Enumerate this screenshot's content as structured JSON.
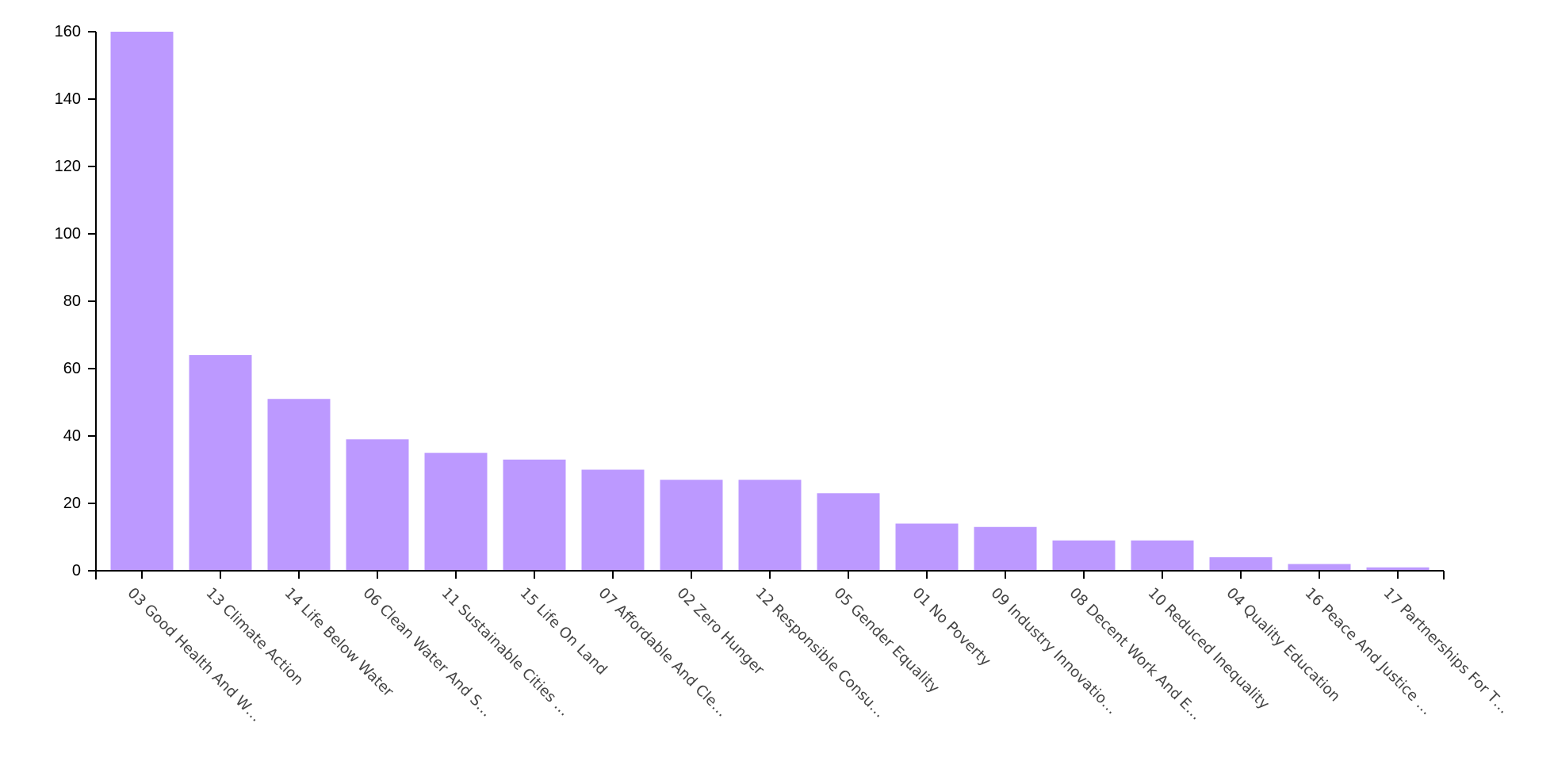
{
  "chart_data": {
    "type": "bar",
    "categories": [
      "03 Good Health And W…",
      "13 Climate Action",
      "14 Life Below Water",
      "06 Clean Water And S…",
      "11 Sustainable Cities …",
      "15 Life On Land",
      "07 Affordable And Cle…",
      "02 Zero Hunger",
      "12 Responsible Consu…",
      "05 Gender Equality",
      "01 No Poverty",
      "09 Industry Innovatio…",
      "08 Decent Work And E…",
      "10 Reduced Inequality",
      "04 Quality Education",
      "16 Peace And Justice …",
      "17 Partnerships For T…"
    ],
    "values": [
      160,
      64,
      51,
      39,
      35,
      33,
      30,
      27,
      27,
      23,
      14,
      13,
      9,
      9,
      4,
      2,
      1
    ],
    "title": "",
    "xlabel": "",
    "ylabel": "",
    "ylim": [
      0,
      160
    ],
    "yticks": [
      0,
      20,
      40,
      60,
      80,
      100,
      120,
      140,
      160
    ],
    "grid": false,
    "legend": "none",
    "bar_color": "#bc99ff",
    "axis_color": "#000000",
    "tick_label_color": "#444444"
  }
}
